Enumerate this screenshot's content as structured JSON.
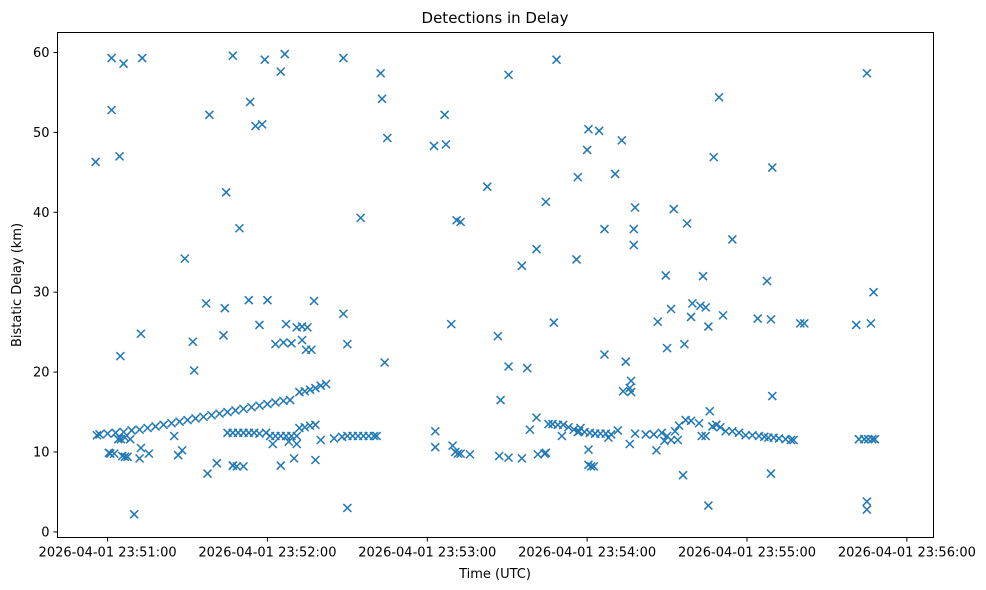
{
  "chart_data": {
    "type": "scatter",
    "title": "Detections in Delay",
    "xlabel": "Time (UTC)",
    "ylabel": "Bistatic Delay (km)",
    "x_units": "seconds after 2026-04-01 23:50:00",
    "xlim": [
      41.2,
      370.0
    ],
    "ylim": [
      -0.7,
      62.5
    ],
    "x_ticks": [
      {
        "value": 60,
        "label": "2026-04-01 23:51:00"
      },
      {
        "value": 120,
        "label": "2026-04-01 23:52:00"
      },
      {
        "value": 180,
        "label": "2026-04-01 23:53:00"
      },
      {
        "value": 240,
        "label": "2026-04-01 23:54:00"
      },
      {
        "value": 300,
        "label": "2026-04-01 23:55:00"
      },
      {
        "value": 360,
        "label": "2026-04-01 23:56:00"
      }
    ],
    "y_ticks": [
      {
        "value": 0,
        "label": "0"
      },
      {
        "value": 10,
        "label": "10"
      },
      {
        "value": 20,
        "label": "20"
      },
      {
        "value": 30,
        "label": "30"
      },
      {
        "value": 40,
        "label": "40"
      },
      {
        "value": 50,
        "label": "50"
      },
      {
        "value": 60,
        "label": "60"
      }
    ],
    "grid": false,
    "marker": "x",
    "color": "#1f77b4",
    "series": [
      {
        "name": "detections",
        "points": [
          [
            55.5,
            46.3
          ],
          [
            61.5,
            59.3
          ],
          [
            61.5,
            52.8
          ],
          [
            66.0,
            58.6
          ],
          [
            64.5,
            47.0
          ],
          [
            73.0,
            59.3
          ],
          [
            64.8,
            22.0
          ],
          [
            72.5,
            24.8
          ],
          [
            89.0,
            34.2
          ],
          [
            98.2,
            52.2
          ],
          [
            107.0,
            59.6
          ],
          [
            92.5,
            20.2
          ],
          [
            92.0,
            23.8
          ],
          [
            97.0,
            28.6
          ],
          [
            103.5,
            24.6
          ],
          [
            104.0,
            28.0
          ],
          [
            104.5,
            42.5
          ],
          [
            109.5,
            38.0
          ],
          [
            113.5,
            53.8
          ],
          [
            115.5,
            50.8
          ],
          [
            118.0,
            51.0
          ],
          [
            113.0,
            29.0
          ],
          [
            119.0,
            59.1
          ],
          [
            125.0,
            57.6
          ],
          [
            126.5,
            59.8
          ],
          [
            117.0,
            25.9
          ],
          [
            123.0,
            23.5
          ],
          [
            127.0,
            26.0
          ],
          [
            120.0,
            29.0
          ],
          [
            126.0,
            23.7
          ],
          [
            129.0,
            23.6
          ],
          [
            137.5,
            28.9
          ],
          [
            134.5,
            22.8
          ],
          [
            133.0,
            24.0
          ],
          [
            136.5,
            22.8
          ],
          [
            148.5,
            27.3
          ],
          [
            148.5,
            59.3
          ],
          [
            150.0,
            23.5
          ],
          [
            155.0,
            39.3
          ],
          [
            162.5,
            57.4
          ],
          [
            163.0,
            54.2
          ],
          [
            165.0,
            49.3
          ],
          [
            164.0,
            21.2
          ],
          [
            182.5,
            48.3
          ],
          [
            186.5,
            52.2
          ],
          [
            187.0,
            48.5
          ],
          [
            189.0,
            26.0
          ],
          [
            191.0,
            39.0
          ],
          [
            192.5,
            38.8
          ],
          [
            202.5,
            43.2
          ],
          [
            206.5,
            24.5
          ],
          [
            207.5,
            16.5
          ],
          [
            210.5,
            20.7
          ],
          [
            210.5,
            57.2
          ],
          [
            215.5,
            33.3
          ],
          [
            217.5,
            20.5
          ],
          [
            221.0,
            35.4
          ],
          [
            224.5,
            41.3
          ],
          [
            227.5,
            26.2
          ],
          [
            228.5,
            59.1
          ],
          [
            236.0,
            34.1
          ],
          [
            236.5,
            44.4
          ],
          [
            240.0,
            47.8
          ],
          [
            240.5,
            50.4
          ],
          [
            244.5,
            50.2
          ],
          [
            246.5,
            37.9
          ],
          [
            246.5,
            22.2
          ],
          [
            250.5,
            44.8
          ],
          [
            253.0,
            49.0
          ],
          [
            253.5,
            17.6
          ],
          [
            254.5,
            21.3
          ],
          [
            256.0,
            18.0
          ],
          [
            256.5,
            17.5
          ],
          [
            256.5,
            18.9
          ],
          [
            257.5,
            35.9
          ],
          [
            257.5,
            37.9
          ],
          [
            258.0,
            40.6
          ],
          [
            266.5,
            26.3
          ],
          [
            269.5,
            32.1
          ],
          [
            270.0,
            23.0
          ],
          [
            271.5,
            27.9
          ],
          [
            272.5,
            40.4
          ],
          [
            276.5,
            23.5
          ],
          [
            277.5,
            38.6
          ],
          [
            279.0,
            26.9
          ],
          [
            279.5,
            28.6
          ],
          [
            282.5,
            28.3
          ],
          [
            283.5,
            32.0
          ],
          [
            284.5,
            28.1
          ],
          [
            285.5,
            25.7
          ],
          [
            287.5,
            46.9
          ],
          [
            289.5,
            54.4
          ],
          [
            291.0,
            27.1
          ],
          [
            294.5,
            36.6
          ],
          [
            304.0,
            26.7
          ],
          [
            307.5,
            31.4
          ],
          [
            309.0,
            26.6
          ],
          [
            309.5,
            45.6
          ],
          [
            320.0,
            26.1
          ],
          [
            321.5,
            26.1
          ],
          [
            341.0,
            25.9
          ],
          [
            345.0,
            57.4
          ],
          [
            346.5,
            26.1
          ],
          [
            347.5,
            30.0
          ],
          [
            97.5,
            7.3
          ],
          [
            101.0,
            8.6
          ],
          [
            107.0,
            8.3
          ],
          [
            108.5,
            8.2
          ],
          [
            111.0,
            8.2
          ],
          [
            125.0,
            8.3
          ],
          [
            130.0,
            9.2
          ],
          [
            138.0,
            9.0
          ],
          [
            150.0,
            3.0
          ],
          [
            122.0,
            11.0
          ],
          [
            131.0,
            11.0
          ],
          [
            140.0,
            11.5
          ],
          [
            145.0,
            11.7
          ],
          [
            56.0,
            12.1
          ],
          [
            60.5,
            9.9
          ],
          [
            61.0,
            9.8
          ],
          [
            62.5,
            9.8
          ],
          [
            64.0,
            11.6
          ],
          [
            65.5,
            9.5
          ],
          [
            66.5,
            9.4
          ],
          [
            67.5,
            9.4
          ],
          [
            68.5,
            11.6
          ],
          [
            70.0,
            2.2
          ],
          [
            72.0,
            9.2
          ],
          [
            72.5,
            10.5
          ],
          [
            75.5,
            9.8
          ],
          [
            86.5,
            9.6
          ],
          [
            107.0,
            8.3
          ],
          [
            128.0,
            11.3
          ],
          [
            183.0,
            12.6
          ],
          [
            183.0,
            10.6
          ],
          [
            189.5,
            10.8
          ],
          [
            190.5,
            10.0
          ],
          [
            191.5,
            9.8
          ],
          [
            192.5,
            9.8
          ],
          [
            196.0,
            9.7
          ],
          [
            207.0,
            9.5
          ],
          [
            210.5,
            9.3
          ],
          [
            215.5,
            9.2
          ],
          [
            218.5,
            12.8
          ],
          [
            221.0,
            14.3
          ],
          [
            221.5,
            9.7
          ],
          [
            224.0,
            9.8
          ],
          [
            224.5,
            9.9
          ],
          [
            225.5,
            13.5
          ],
          [
            230.5,
            12.0
          ],
          [
            236.5,
            12.5
          ],
          [
            237.5,
            13.0
          ],
          [
            240.5,
            10.3
          ],
          [
            240.5,
            8.4
          ],
          [
            241.5,
            8.2
          ],
          [
            242.5,
            8.2
          ],
          [
            243.0,
            12.3
          ],
          [
            248.0,
            11.8
          ],
          [
            251.5,
            12.7
          ],
          [
            256.0,
            11.0
          ],
          [
            266.0,
            10.2
          ],
          [
            269.0,
            11.4
          ],
          [
            271.5,
            11.5
          ],
          [
            274.0,
            11.5
          ],
          [
            276.0,
            7.1
          ],
          [
            285.5,
            3.3
          ],
          [
            309.0,
            7.3
          ],
          [
            309.5,
            17.0
          ],
          [
            345.0,
            3.8
          ],
          [
            345.0,
            2.8
          ],
          [
            258.0,
            12.3
          ],
          [
            262.0,
            12.2
          ],
          [
            265.0,
            12.2
          ],
          [
            268.0,
            12.4
          ],
          [
            270.0,
            12.0
          ],
          [
            273.0,
            12.6
          ],
          [
            274.5,
            13.3
          ],
          [
            277.0,
            14.0
          ],
          [
            279.0,
            13.9
          ],
          [
            282.0,
            13.6
          ],
          [
            283.0,
            12.0
          ],
          [
            284.5,
            12.0
          ],
          [
            286.0,
            15.1
          ],
          [
            287.0,
            13.2
          ],
          [
            288.5,
            13.4
          ],
          [
            290.0,
            13.1
          ],
          [
            292.0,
            12.6
          ],
          [
            294.5,
            12.6
          ],
          [
            297.0,
            12.4
          ],
          [
            299.5,
            12.1
          ],
          [
            302.0,
            12.1
          ],
          [
            304.5,
            12.0
          ],
          [
            306.5,
            11.9
          ],
          [
            308.0,
            11.8
          ],
          [
            310.0,
            11.8
          ],
          [
            312.0,
            11.7
          ],
          [
            314.5,
            11.6
          ],
          [
            316.5,
            11.5
          ],
          [
            317.5,
            11.5
          ],
          [
            342.0,
            11.6
          ],
          [
            344.0,
            11.6
          ],
          [
            345.5,
            11.6
          ],
          [
            347.0,
            11.6
          ],
          [
            348.0,
            11.6
          ],
          [
            227.0,
            13.5
          ],
          [
            229.0,
            13.4
          ],
          [
            231.0,
            13.4
          ],
          [
            233.0,
            13.1
          ],
          [
            235.0,
            12.8
          ],
          [
            237.0,
            12.6
          ],
          [
            239.0,
            12.5
          ],
          [
            241.0,
            12.4
          ],
          [
            243.0,
            12.3
          ],
          [
            245.0,
            12.3
          ],
          [
            247.0,
            12.3
          ],
          [
            249.0,
            12.2
          ],
          [
            65.0,
            11.6
          ],
          [
            66.5,
            11.8
          ],
          [
            85.0,
            12.0
          ],
          [
            88.0,
            10.2
          ],
          [
            105.0,
            12.4
          ],
          [
            107.0,
            12.4
          ],
          [
            109.0,
            12.4
          ],
          [
            111.0,
            12.4
          ],
          [
            113.0,
            12.4
          ],
          [
            115.0,
            12.4
          ],
          [
            117.0,
            12.3
          ],
          [
            119.5,
            12.4
          ],
          [
            121.0,
            12.0
          ],
          [
            123.0,
            12.0
          ],
          [
            125.0,
            12.0
          ],
          [
            127.0,
            12.0
          ],
          [
            129.0,
            12.0
          ],
          [
            131.0,
            12.0
          ],
          [
            132.0,
            13.0
          ],
          [
            134.0,
            13.1
          ],
          [
            136.0,
            13.3
          ],
          [
            138.0,
            13.4
          ],
          [
            148.0,
            11.9
          ],
          [
            150.0,
            12.0
          ],
          [
            152.0,
            12.0
          ],
          [
            154.0,
            12.0
          ],
          [
            156.0,
            12.0
          ],
          [
            158.0,
            12.0
          ],
          [
            160.0,
            12.0
          ],
          [
            161.0,
            12.0
          ],
          [
            132.0,
            17.5
          ],
          [
            134.0,
            17.6
          ],
          [
            136.0,
            17.8
          ],
          [
            138.0,
            18.0
          ],
          [
            140.0,
            18.3
          ],
          [
            142.0,
            18.5
          ],
          [
            131.0,
            25.6
          ],
          [
            133.0,
            25.7
          ],
          [
            135.0,
            25.6
          ],
          [
            57.0,
            12.2
          ],
          [
            60.0,
            12.3
          ],
          [
            63.0,
            12.4
          ],
          [
            66.0,
            12.5
          ],
          [
            69.0,
            12.7
          ],
          [
            72.0,
            12.8
          ],
          [
            75.0,
            13.0
          ],
          [
            78.0,
            13.2
          ],
          [
            81.0,
            13.4
          ],
          [
            84.0,
            13.6
          ],
          [
            87.0,
            13.8
          ],
          [
            90.0,
            14.0
          ],
          [
            93.0,
            14.2
          ],
          [
            96.0,
            14.4
          ],
          [
            99.0,
            14.6
          ],
          [
            102.0,
            14.8
          ],
          [
            105.0,
            15.0
          ],
          [
            108.0,
            15.2
          ],
          [
            111.0,
            15.4
          ],
          [
            114.0,
            15.6
          ],
          [
            117.0,
            15.8
          ],
          [
            120.0,
            16.0
          ],
          [
            123.0,
            16.2
          ],
          [
            126.0,
            16.4
          ],
          [
            128.5,
            16.5
          ]
        ]
      }
    ]
  }
}
